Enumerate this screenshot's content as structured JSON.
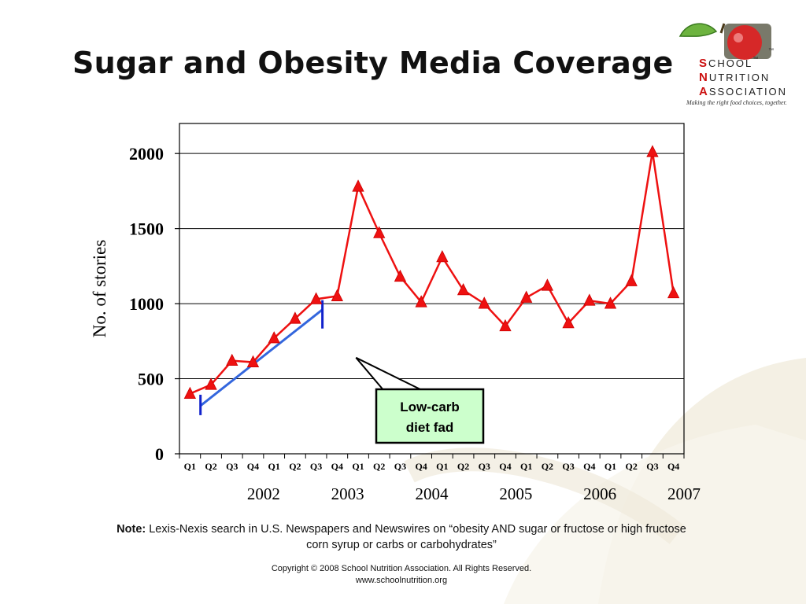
{
  "slide": {
    "title": "Sugar and Obesity Media Coverage",
    "logo": {
      "lines": [
        {
          "cap": "S",
          "rest": "CHOOL"
        },
        {
          "cap": "N",
          "rest": "UTRITION"
        },
        {
          "cap": "A",
          "rest": "SSOCIATION"
        }
      ],
      "tm": "™",
      "tagline": "Making the right food choices, together."
    },
    "note": {
      "label": "Note:",
      "text": " Lexis-Nexis search in U.S. Newspapers and Newswires on “obesity AND sugar or fructose or high fructose corn syrup or carbs or carbohydrates”"
    },
    "copyright": {
      "line1": "Copyright © 2008 School Nutrition Association.  All Rights Reserved.",
      "line2": "www.schoolnutrition.org"
    }
  },
  "chart_data": {
    "type": "line",
    "title": "",
    "ylabel": "No. of stories",
    "xlabel": "",
    "ylim": [
      0,
      2200
    ],
    "yticks": [
      0,
      500,
      1000,
      1500,
      2000
    ],
    "grid": true,
    "categories": [
      "Q1",
      "Q2",
      "Q3",
      "Q4",
      "Q1",
      "Q2",
      "Q3",
      "Q4",
      "Q1",
      "Q2",
      "Q3",
      "Q4",
      "Q1",
      "Q2",
      "Q3",
      "Q4",
      "Q1",
      "Q2",
      "Q3",
      "Q4",
      "Q1",
      "Q2",
      "Q3",
      "Q4"
    ],
    "year_labels": [
      {
        "label": "2002",
        "start": 0,
        "end": 4
      },
      {
        "label": "2003",
        "start": 4,
        "end": 8
      },
      {
        "label": "2004",
        "start": 8,
        "end": 12
      },
      {
        "label": "2005",
        "start": 12,
        "end": 16
      },
      {
        "label": "2006",
        "start": 16,
        "end": 20
      },
      {
        "label": "2007",
        "start": 20,
        "end": 24
      }
    ],
    "series": [
      {
        "color": "#ee1111",
        "values": [
          400,
          460,
          620,
          610,
          770,
          900,
          1030,
          1050,
          1780,
          1470,
          1180,
          1010,
          1310,
          1090,
          1000,
          850,
          1040,
          1120,
          870,
          1020,
          1000,
          1150,
          2010,
          1070
        ]
      }
    ],
    "annotations": [
      {
        "type": "callout",
        "text_lines": [
          "Low-carb",
          "diet fad"
        ],
        "fill": "#ccffcc",
        "points_to": {
          "x_index": 7.9,
          "y": 640
        }
      },
      {
        "type": "trend-line",
        "color": "#3366dd",
        "from": {
          "x_index": 0.5,
          "y": 320
        },
        "to": {
          "x_index": 6.3,
          "y": 960
        }
      }
    ]
  }
}
